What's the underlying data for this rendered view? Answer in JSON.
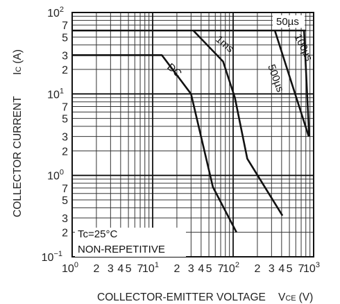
{
  "chart_data": {
    "type": "line",
    "title": "",
    "xlabel": "COLLECTOR-EMITTER VOLTAGE",
    "xlabel_symbol_main": "V",
    "xlabel_symbol_sub": "CE",
    "xlabel_unit": "(V)",
    "ylabel": "COLLECTOR CURRENT",
    "ylabel_symbol_main": "I",
    "ylabel_symbol_sub": "C",
    "ylabel_unit": "(A)",
    "x_scale": "log",
    "y_scale": "log",
    "xlim": [
      1,
      1000
    ],
    "ylim": [
      0.1,
      100
    ],
    "grid": true,
    "x_ticks": [
      {
        "value": 1,
        "base": "10",
        "exp": "0"
      },
      {
        "value": 2,
        "label": "2"
      },
      {
        "value": 3,
        "label": "3"
      },
      {
        "value": 4,
        "label": "4"
      },
      {
        "value": 5,
        "label": "5"
      },
      {
        "value": 7,
        "label": "7"
      },
      {
        "value": 10,
        "base": "10",
        "exp": "1"
      },
      {
        "value": 20,
        "label": "2"
      },
      {
        "value": 30,
        "label": "3"
      },
      {
        "value": 40,
        "label": "4"
      },
      {
        "value": 50,
        "label": "5"
      },
      {
        "value": 70,
        "label": "7"
      },
      {
        "value": 100,
        "base": "10",
        "exp": "2"
      },
      {
        "value": 200,
        "label": "2"
      },
      {
        "value": 300,
        "label": "3"
      },
      {
        "value": 400,
        "label": "4"
      },
      {
        "value": 500,
        "label": "5"
      },
      {
        "value": 700,
        "label": "7"
      },
      {
        "value": 1000,
        "base": "10",
        "exp": "3"
      }
    ],
    "y_ticks": [
      {
        "value": 100,
        "base": "10",
        "exp": "2"
      },
      {
        "value": 70,
        "label": "7"
      },
      {
        "value": 50,
        "label": "5"
      },
      {
        "value": 30,
        "label": "3"
      },
      {
        "value": 20,
        "label": "2"
      },
      {
        "value": 10,
        "base": "10",
        "exp": "1"
      },
      {
        "value": 7,
        "label": "7"
      },
      {
        "value": 5,
        "label": "5"
      },
      {
        "value": 3,
        "label": "3"
      },
      {
        "value": 2,
        "label": "2"
      },
      {
        "value": 1,
        "base": "10",
        "exp": "0"
      },
      {
        "value": 0.7,
        "label": "7"
      },
      {
        "value": 0.5,
        "label": "5"
      },
      {
        "value": 0.3,
        "label": "3"
      },
      {
        "value": 0.2,
        "label": "2"
      },
      {
        "value": 0.1,
        "base": "10",
        "exp": "−1"
      }
    ],
    "series": [
      {
        "name": "DC",
        "x": [
          1,
          13,
          30,
          56,
          110
        ],
        "y": [
          30,
          30,
          10,
          0.72,
          0.2
        ]
      },
      {
        "name": "1ms",
        "x": [
          32,
          75,
          105,
          150,
          410
        ],
        "y": [
          60,
          25,
          9,
          1.6,
          0.32
        ]
      },
      {
        "name": "500µs",
        "x": [
          330,
          870
        ],
        "y": [
          60,
          3
        ]
      },
      {
        "name": "100µs",
        "x": [
          760,
          880
        ],
        "y": [
          60,
          3
        ]
      },
      {
        "name": "50µs",
        "x": [
          1,
          800
        ],
        "y": [
          60,
          60
        ]
      }
    ],
    "annotations": [
      "Tc=25°C",
      "NON-REPETITIVE"
    ]
  }
}
